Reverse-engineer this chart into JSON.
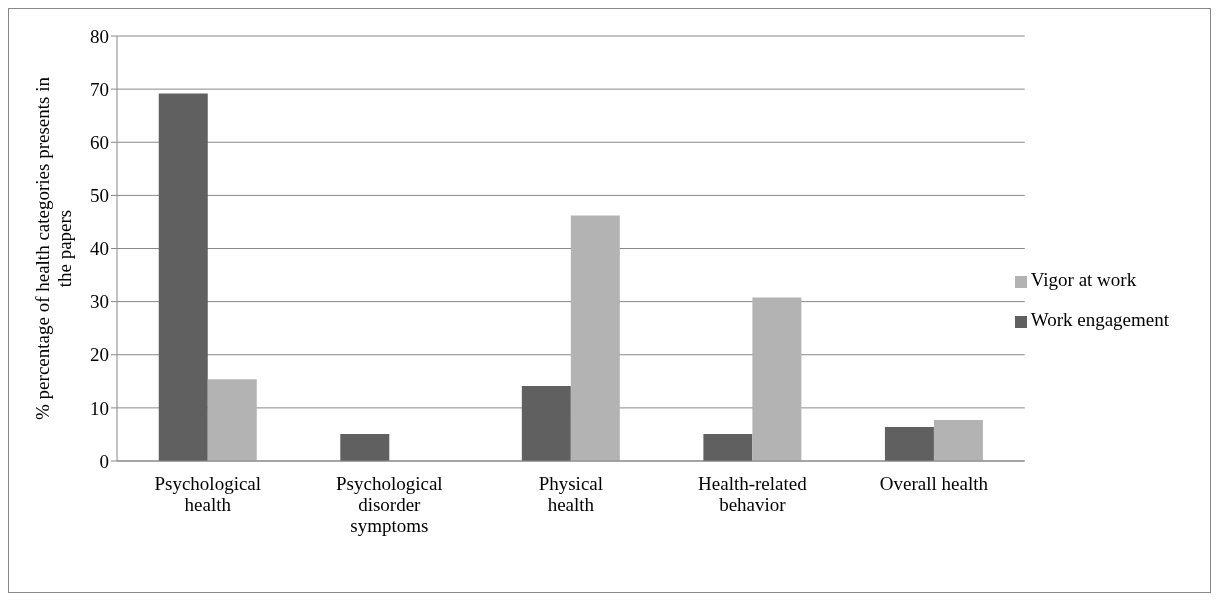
{
  "chart_data": {
    "type": "bar",
    "ylabel": "% percentage of health categories presents in the papers",
    "categories": [
      "Psychological health",
      "Psychological disorder symptoms",
      "Physical health",
      "Health-related behavior",
      "Overall health"
    ],
    "series": [
      {
        "name": "Work engagement",
        "color": "#606060",
        "values": [
          69.2,
          5.1,
          14.1,
          5.1,
          6.4
        ]
      },
      {
        "name": "Vigor at work",
        "color": "#b3b3b3",
        "values": [
          15.4,
          0,
          46.2,
          30.8,
          7.7
        ]
      }
    ],
    "ylim": [
      0,
      80
    ],
    "yticks": [
      0,
      10,
      20,
      30,
      40,
      50,
      60,
      70,
      80
    ],
    "grid": "y",
    "legend": "right"
  }
}
